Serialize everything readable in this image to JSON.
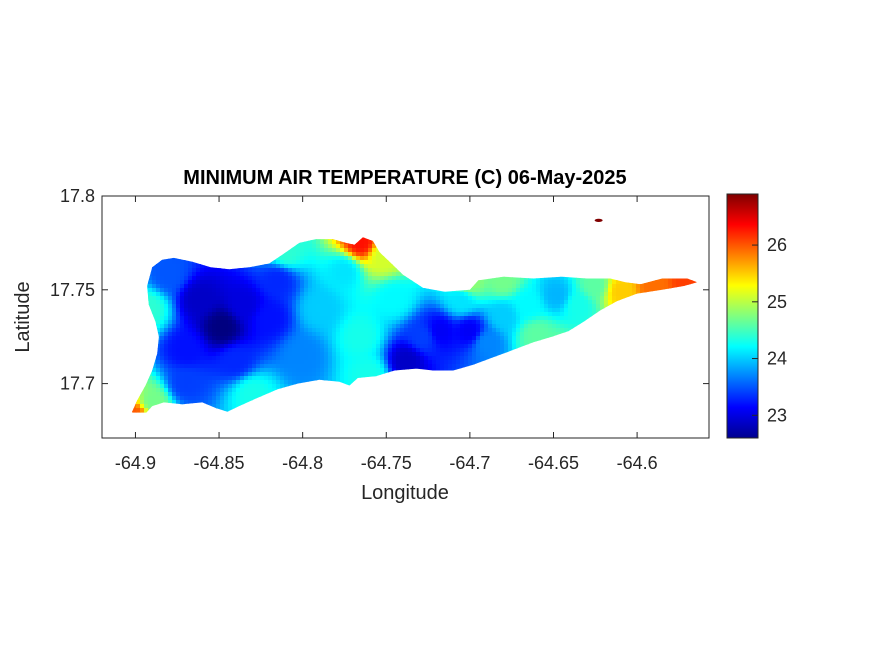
{
  "chart_data": {
    "type": "heatmap",
    "title": "MINIMUM AIR TEMPERATURE (C) 06-May-2025",
    "xlabel": "Longitude",
    "ylabel": "Latitude",
    "xlim": [
      -64.92,
      -64.557
    ],
    "ylim": [
      17.671,
      17.8
    ],
    "x_ticks": [
      {
        "value": -64.9,
        "label": "-64.9"
      },
      {
        "value": -64.85,
        "label": "-64.85"
      },
      {
        "value": -64.8,
        "label": "-64.8"
      },
      {
        "value": -64.75,
        "label": "-64.75"
      },
      {
        "value": -64.7,
        "label": "-64.7"
      },
      {
        "value": -64.65,
        "label": "-64.65"
      },
      {
        "value": -64.6,
        "label": "-64.6"
      }
    ],
    "y_ticks": [
      {
        "value": 17.7,
        "label": "17.7"
      },
      {
        "value": 17.75,
        "label": "17.75"
      },
      {
        "value": 17.8,
        "label": "17.8"
      }
    ],
    "colorbar": {
      "colormap": "jet",
      "range": [
        22.6,
        26.9
      ],
      "ticks": [
        {
          "value": 23,
          "label": "23"
        },
        {
          "value": 24,
          "label": "24"
        },
        {
          "value": 25,
          "label": "25"
        },
        {
          "value": 26,
          "label": "26"
        }
      ]
    },
    "grid": false,
    "island_outline": [
      [
        -64.896,
        17.682
      ],
      [
        -64.89,
        17.688
      ],
      [
        -64.883,
        17.69
      ],
      [
        -64.872,
        17.689
      ],
      [
        -64.86,
        17.69
      ],
      [
        -64.852,
        17.687
      ],
      [
        -64.845,
        17.685
      ],
      [
        -64.838,
        17.688
      ],
      [
        -64.828,
        17.692
      ],
      [
        -64.815,
        17.697
      ],
      [
        -64.803,
        17.7
      ],
      [
        -64.79,
        17.702
      ],
      [
        -64.778,
        17.701
      ],
      [
        -64.772,
        17.699
      ],
      [
        -64.767,
        17.703
      ],
      [
        -64.756,
        17.704
      ],
      [
        -64.745,
        17.707
      ],
      [
        -64.732,
        17.708
      ],
      [
        -64.722,
        17.707
      ],
      [
        -64.71,
        17.707
      ],
      [
        -64.698,
        17.71
      ],
      [
        -64.686,
        17.714
      ],
      [
        -64.674,
        17.718
      ],
      [
        -64.662,
        17.722
      ],
      [
        -64.651,
        17.725
      ],
      [
        -64.641,
        17.728
      ],
      [
        -64.632,
        17.733
      ],
      [
        -64.622,
        17.739
      ],
      [
        -64.612,
        17.744
      ],
      [
        -64.6,
        17.748
      ],
      [
        -64.585,
        17.75
      ],
      [
        -64.572,
        17.752
      ],
      [
        -64.564,
        17.754
      ],
      [
        -64.57,
        17.756
      ],
      [
        -64.585,
        17.756
      ],
      [
        -64.598,
        17.753
      ],
      [
        -64.607,
        17.754
      ],
      [
        -64.616,
        17.756
      ],
      [
        -64.63,
        17.756
      ],
      [
        -64.645,
        17.757
      ],
      [
        -64.662,
        17.756
      ],
      [
        -64.68,
        17.757
      ],
      [
        -64.695,
        17.755
      ],
      [
        -64.696,
        17.754
      ],
      [
        -64.7,
        17.75
      ],
      [
        -64.715,
        17.749
      ],
      [
        -64.728,
        17.751
      ],
      [
        -64.74,
        17.758
      ],
      [
        -64.748,
        17.765
      ],
      [
        -64.754,
        17.77
      ],
      [
        -64.758,
        17.776
      ],
      [
        -64.764,
        17.778
      ],
      [
        -64.769,
        17.774
      ],
      [
        -64.774,
        17.775
      ],
      [
        -64.782,
        17.777
      ],
      [
        -64.792,
        17.777
      ],
      [
        -64.802,
        17.775
      ],
      [
        -64.81,
        17.77
      ],
      [
        -64.82,
        17.764
      ],
      [
        -64.832,
        17.762
      ],
      [
        -64.844,
        17.761
      ],
      [
        -64.855,
        17.762
      ],
      [
        -64.866,
        17.765
      ],
      [
        -64.877,
        17.767
      ],
      [
        -64.884,
        17.766
      ],
      [
        -64.89,
        17.762
      ],
      [
        -64.893,
        17.752
      ],
      [
        -64.892,
        17.742
      ],
      [
        -64.888,
        17.733
      ],
      [
        -64.886,
        17.725
      ],
      [
        -64.887,
        17.716
      ],
      [
        -64.89,
        17.707
      ],
      [
        -64.894,
        17.699
      ],
      [
        -64.899,
        17.691
      ],
      [
        -64.902,
        17.685
      ],
      [
        -64.9,
        17.681
      ]
    ],
    "samples": [
      {
        "lon": -64.848,
        "lat": 17.73,
        "value": 22.6
      },
      {
        "lon": -64.862,
        "lat": 17.745,
        "value": 22.9
      },
      {
        "lon": -64.835,
        "lat": 17.742,
        "value": 23.0
      },
      {
        "lon": -64.87,
        "lat": 17.718,
        "value": 23.2
      },
      {
        "lon": -64.84,
        "lat": 17.712,
        "value": 23.3
      },
      {
        "lon": -64.82,
        "lat": 17.735,
        "value": 23.2
      },
      {
        "lon": -64.815,
        "lat": 17.755,
        "value": 23.3
      },
      {
        "lon": -64.87,
        "lat": 17.7,
        "value": 23.4
      },
      {
        "lon": -64.88,
        "lat": 17.758,
        "value": 23.5
      },
      {
        "lon": -64.8,
        "lat": 17.715,
        "value": 23.7
      },
      {
        "lon": -64.79,
        "lat": 17.74,
        "value": 24.0
      },
      {
        "lon": -64.775,
        "lat": 17.76,
        "value": 24.1
      },
      {
        "lon": -64.765,
        "lat": 17.725,
        "value": 24.3
      },
      {
        "lon": -64.76,
        "lat": 17.705,
        "value": 24.3
      },
      {
        "lon": -64.745,
        "lat": 17.745,
        "value": 24.2
      },
      {
        "lon": -64.738,
        "lat": 17.712,
        "value": 22.9
      },
      {
        "lon": -64.728,
        "lat": 17.725,
        "value": 23.4
      },
      {
        "lon": -64.718,
        "lat": 17.728,
        "value": 23.1
      },
      {
        "lon": -64.7,
        "lat": 17.728,
        "value": 23.1
      },
      {
        "lon": -64.69,
        "lat": 17.722,
        "value": 23.7
      },
      {
        "lon": -64.705,
        "lat": 17.744,
        "value": 24.1
      },
      {
        "lon": -64.68,
        "lat": 17.736,
        "value": 24.0
      },
      {
        "lon": -64.665,
        "lat": 17.742,
        "value": 24.2
      },
      {
        "lon": -64.648,
        "lat": 17.747,
        "value": 23.9
      },
      {
        "lon": -64.635,
        "lat": 17.742,
        "value": 24.3
      },
      {
        "lon": -64.66,
        "lat": 17.726,
        "value": 24.6
      },
      {
        "lon": -64.625,
        "lat": 17.752,
        "value": 24.6
      },
      {
        "lon": -64.61,
        "lat": 17.749,
        "value": 25.5
      },
      {
        "lon": -64.59,
        "lat": 17.752,
        "value": 25.9
      },
      {
        "lon": -64.57,
        "lat": 17.754,
        "value": 26.1
      },
      {
        "lon": -64.765,
        "lat": 17.775,
        "value": 26.3
      },
      {
        "lon": -64.752,
        "lat": 17.768,
        "value": 25.1
      },
      {
        "lon": -64.9,
        "lat": 17.683,
        "value": 26.0
      },
      {
        "lon": -64.89,
        "lat": 17.69,
        "value": 24.7
      },
      {
        "lon": -64.892,
        "lat": 17.74,
        "value": 24.4
      },
      {
        "lon": -64.81,
        "lat": 17.77,
        "value": 24.4
      },
      {
        "lon": -64.7,
        "lat": 17.754,
        "value": 24.8
      },
      {
        "lon": -64.68,
        "lat": 17.755,
        "value": 24.7
      },
      {
        "lon": -64.65,
        "lat": 17.718,
        "value": 24.6
      },
      {
        "lon": -64.83,
        "lat": 17.695,
        "value": 24.3
      }
    ],
    "spots": [
      {
        "lon": -64.623,
        "lat": 17.787,
        "value": 26.9
      }
    ]
  }
}
